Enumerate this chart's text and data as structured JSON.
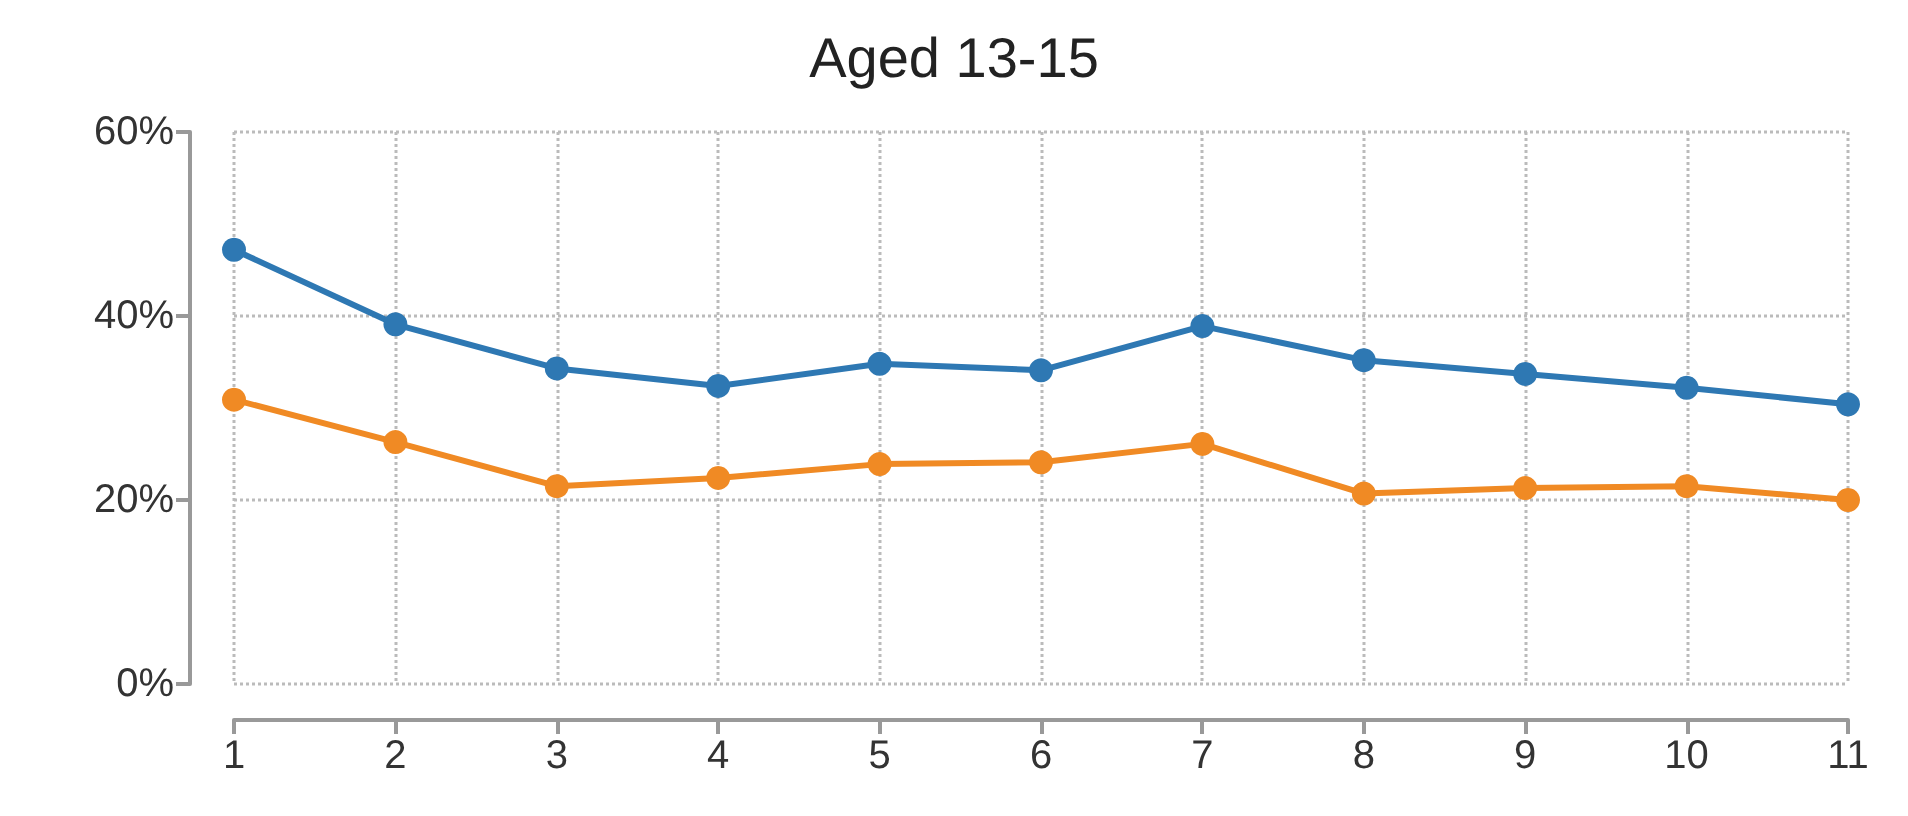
{
  "chart_data": {
    "type": "line",
    "title": "Aged 13-15",
    "x": [
      1,
      2,
      3,
      4,
      5,
      6,
      7,
      8,
      9,
      10,
      11
    ],
    "series": [
      {
        "color": "#2e78b3",
        "values": [
          47.2,
          39.1,
          34.3,
          32.4,
          34.8,
          34.1,
          38.9,
          35.2,
          33.7,
          32.2,
          30.4
        ]
      },
      {
        "color": "#f08a24",
        "values": [
          30.9,
          26.3,
          21.5,
          22.4,
          23.9,
          24.1,
          26.1,
          20.7,
          21.3,
          21.5,
          20.0
        ]
      }
    ],
    "xlim": [
      1,
      11
    ],
    "xticks": [
      1,
      2,
      3,
      4,
      5,
      6,
      7,
      8,
      9,
      10,
      11
    ],
    "ylim": [
      0,
      60
    ],
    "yticks": [
      {
        "value": 0,
        "label": "0%"
      },
      {
        "value": 20,
        "label": "20%"
      },
      {
        "value": 40,
        "label": "40%"
      },
      {
        "value": 60,
        "label": "60%"
      }
    ],
    "grid": true,
    "marker": "circle",
    "line_style": "solid"
  }
}
